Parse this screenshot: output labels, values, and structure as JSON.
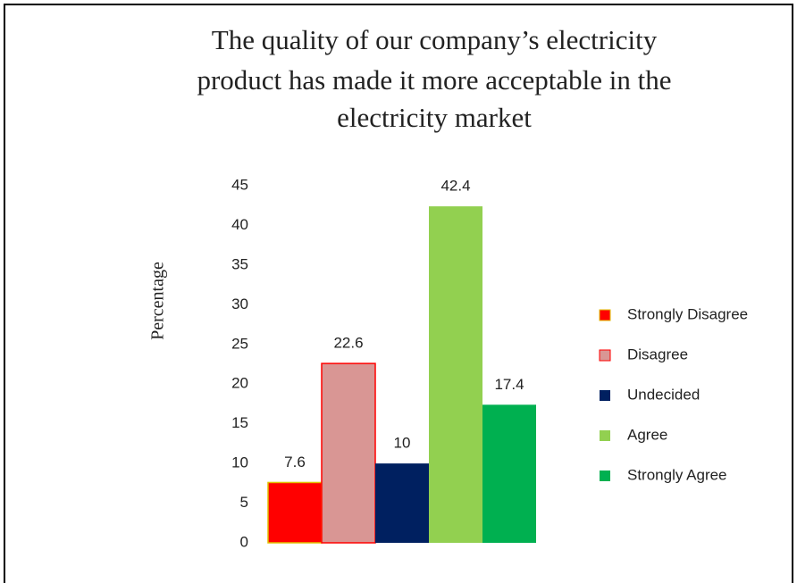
{
  "chart_data": {
    "type": "bar",
    "title": [
      "The quality of our company’s electricity",
      "product has made it more acceptable in the",
      "electricity market"
    ],
    "ylabel": "Percentage",
    "categories": [
      null
    ],
    "series": [
      {
        "name": "Strongly Disagree",
        "color": "#ff0000",
        "values": [
          7.6
        ]
      },
      {
        "name": "Disagree",
        "color": "#d99694",
        "values": [
          22.6
        ]
      },
      {
        "name": "Undecided",
        "color": "#002060",
        "values": [
          10
        ]
      },
      {
        "name": "Agree",
        "color": "#92d050",
        "values": [
          42.4
        ]
      },
      {
        "name": "Strongly Agree",
        "color": "#00b050",
        "values": [
          17.4
        ]
      }
    ],
    "ylim": [
      0,
      45
    ],
    "yticks": [
      0,
      5,
      10,
      15,
      20,
      25,
      30,
      35,
      40,
      45
    ],
    "grid": false,
    "legend": "right"
  }
}
